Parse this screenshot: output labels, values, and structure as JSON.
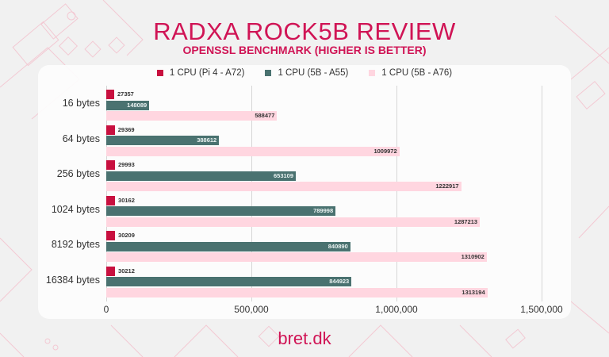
{
  "header": {
    "title": "RADXA ROCK5B REVIEW",
    "subtitle": "OPENSSL BENCHMARK (HIGHER IS BETTER)"
  },
  "legend": [
    {
      "label": "1 CPU (Pi 4 - A72)",
      "color": "#c8103f"
    },
    {
      "label": "1 CPU (5B - A55)",
      "color": "#4a7270"
    },
    {
      "label": "1 CPU (5B - A76)",
      "color": "#ffd6e0"
    }
  ],
  "axis": {
    "xticks": [
      "0",
      "500,000",
      "1,000,000",
      "1,500,000"
    ]
  },
  "footer": {
    "brand": "bret.dk"
  },
  "chart_data": {
    "type": "bar",
    "orientation": "horizontal",
    "title": "RADXA ROCK5B REVIEW",
    "subtitle": "OPENSSL BENCHMARK (HIGHER IS BETTER)",
    "categories": [
      "16 bytes",
      "64 bytes",
      "256 bytes",
      "1024 bytes",
      "8192 bytes",
      "16384 bytes"
    ],
    "series": [
      {
        "name": "1 CPU (Pi 4 - A72)",
        "color": "#c8103f",
        "values": [
          27357,
          29369,
          29993,
          30162,
          30209,
          30212
        ]
      },
      {
        "name": "1 CPU (5B - A55)",
        "color": "#4a7270",
        "values": [
          148089,
          388612,
          653109,
          789998,
          840890,
          844923
        ]
      },
      {
        "name": "1 CPU (5B - A76)",
        "color": "#ffd6e0",
        "values": [
          588477,
          1009972,
          1222917,
          1287213,
          1310902,
          1313194
        ]
      }
    ],
    "xlabel": "",
    "ylabel": "",
    "xlim": [
      0,
      1500000
    ],
    "xticks": [
      0,
      500000,
      1000000,
      1500000
    ],
    "grid": true,
    "legend_position": "top",
    "data_labels": true
  }
}
